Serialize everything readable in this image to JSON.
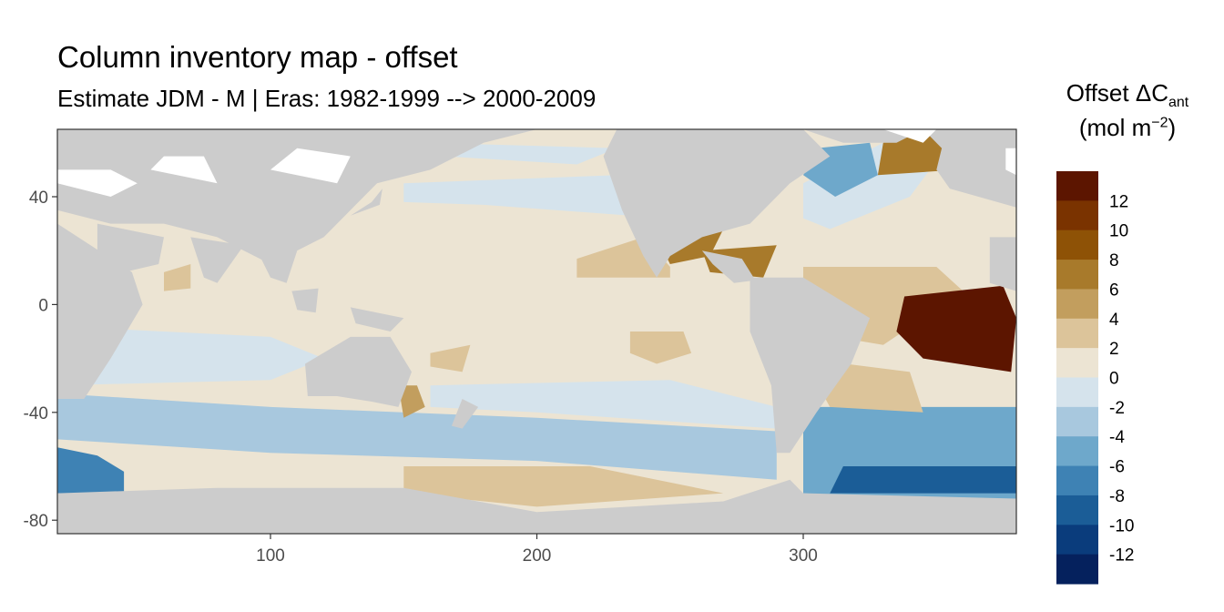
{
  "chart_data": {
    "type": "heatmap",
    "title": "Column inventory map - offset",
    "subtitle": "Estimate JDM - M | Eras: 1982-1999 --> 2000-2009",
    "legend": {
      "title_main": "Offset ΔC",
      "title_sub": "ant",
      "units_prefix": "(mol m",
      "units_sup": "−2",
      "units_suffix": ")",
      "placement": "right",
      "breaks": [
        14,
        12,
        10,
        8,
        6,
        4,
        2,
        0,
        -2,
        -4,
        -6,
        -8,
        -10,
        -12,
        -14
      ],
      "labels": [
        "12",
        "10",
        "8",
        "6",
        "4",
        "2",
        "0",
        "-2",
        "-4",
        "-6",
        "-8",
        "-10",
        "-12"
      ],
      "colors": [
        "#5c1500",
        "#7a3300",
        "#8e5206",
        "#a87a2b",
        "#c29e5e",
        "#dcc49a",
        "#ece4d3",
        "#d5e3ec",
        "#a8c8de",
        "#6ea8cb",
        "#3e82b4",
        "#1b5d97",
        "#0a3c7c",
        "#05215d"
      ]
    },
    "xlim": [
      20,
      380
    ],
    "ylim": [
      -85,
      65
    ],
    "x_ticks": [
      100,
      200,
      300
    ],
    "y_ticks": [
      40,
      0,
      -40,
      -80
    ],
    "grid": false,
    "colors": {
      "land": "#cccccc",
      "no_data": "#ffffff",
      "axis": "#333333"
    },
    "regions": [
      {
        "name": "pacific-background",
        "value": 0.8,
        "points": [
          [
            20,
            65
          ],
          [
            380,
            65
          ],
          [
            380,
            -85
          ],
          [
            20,
            -85
          ]
        ]
      },
      {
        "name": "north-pacific-negative",
        "value": -0.8,
        "points": [
          [
            150,
            45
          ],
          [
            230,
            48
          ],
          [
            255,
            40
          ],
          [
            235,
            33
          ],
          [
            180,
            37
          ],
          [
            150,
            38
          ]
        ]
      },
      {
        "name": "subpolar-pacific-negative",
        "value": -0.8,
        "points": [
          [
            160,
            60
          ],
          [
            230,
            58
          ],
          [
            215,
            52
          ],
          [
            165,
            55
          ]
        ]
      },
      {
        "name": "southern-ocean-band",
        "value": -2.8,
        "points": [
          [
            20,
            -33
          ],
          [
            100,
            -38
          ],
          [
            200,
            -42
          ],
          [
            290,
            -47
          ],
          [
            290,
            -65
          ],
          [
            200,
            -58
          ],
          [
            100,
            -55
          ],
          [
            20,
            -50
          ]
        ]
      },
      {
        "name": "south-indian-negative",
        "value": -0.8,
        "points": [
          [
            20,
            -8
          ],
          [
            100,
            -12
          ],
          [
            120,
            -20
          ],
          [
            100,
            -28
          ],
          [
            20,
            -30
          ]
        ]
      },
      {
        "name": "south-pacific-negative",
        "value": -0.8,
        "points": [
          [
            160,
            -30
          ],
          [
            250,
            -28
          ],
          [
            290,
            -38
          ],
          [
            290,
            -46
          ],
          [
            200,
            -40
          ],
          [
            160,
            -38
          ]
        ]
      },
      {
        "name": "ross-sea-positive",
        "value": 2.5,
        "points": [
          [
            150,
            -60
          ],
          [
            220,
            -60
          ],
          [
            270,
            -70
          ],
          [
            200,
            -75
          ],
          [
            150,
            -70
          ]
        ]
      },
      {
        "name": "indian-weddell-strong-negative",
        "value": -6.5,
        "points": [
          [
            20,
            -53
          ],
          [
            35,
            -56
          ],
          [
            45,
            -62
          ],
          [
            45,
            -70
          ],
          [
            20,
            -70
          ]
        ]
      },
      {
        "name": "atlantic-sector-negative",
        "value": -4.5,
        "points": [
          [
            300,
            -38
          ],
          [
            380,
            -38
          ],
          [
            380,
            -75
          ],
          [
            300,
            -70
          ]
        ]
      },
      {
        "name": "weddell-strong-negative",
        "value": -9,
        "points": [
          [
            315,
            -60
          ],
          [
            380,
            -60
          ],
          [
            380,
            -70
          ],
          [
            310,
            -70
          ]
        ]
      },
      {
        "name": "east-pacific-positive",
        "value": 3,
        "points": [
          [
            215,
            10
          ],
          [
            250,
            10
          ],
          [
            250,
            14
          ],
          [
            240,
            25
          ],
          [
            215,
            17
          ]
        ]
      },
      {
        "name": "east-pacific-south-positive",
        "value": 2.5,
        "points": [
          [
            235,
            -10
          ],
          [
            255,
            -10
          ],
          [
            258,
            -18
          ],
          [
            245,
            -22
          ],
          [
            235,
            -18
          ]
        ]
      },
      {
        "name": "caribbean-positive",
        "value": 6.5,
        "points": [
          [
            245,
            25
          ],
          [
            270,
            28
          ],
          [
            265,
            18
          ],
          [
            250,
            15
          ]
        ]
      },
      {
        "name": "gulf-positive",
        "value": 6.5,
        "points": [
          [
            262,
            20
          ],
          [
            290,
            22
          ],
          [
            285,
            10
          ],
          [
            265,
            12
          ]
        ]
      },
      {
        "name": "north-atlantic-negative",
        "value": -1.5,
        "points": [
          [
            310,
            28
          ],
          [
            340,
            40
          ],
          [
            355,
            60
          ],
          [
            330,
            60
          ],
          [
            300,
            45
          ],
          [
            300,
            32
          ]
        ]
      },
      {
        "name": "labrador-strong-negative",
        "value": -4.5,
        "points": [
          [
            312,
            40
          ],
          [
            328,
            48
          ],
          [
            325,
            60
          ],
          [
            305,
            58
          ],
          [
            300,
            48
          ]
        ]
      },
      {
        "name": "nordic-positive",
        "value": 6.5,
        "points": [
          [
            328,
            48
          ],
          [
            358,
            50
          ],
          [
            370,
            65
          ],
          [
            345,
            65
          ],
          [
            330,
            60
          ]
        ]
      },
      {
        "name": "atlantic-equator-positive",
        "value": 3,
        "points": [
          [
            300,
            14
          ],
          [
            350,
            14
          ],
          [
            360,
            5
          ],
          [
            330,
            -15
          ],
          [
            300,
            -10
          ]
        ]
      },
      {
        "name": "south-atlantic-positive",
        "value": 4,
        "points": [
          [
            300,
            -20
          ],
          [
            340,
            -25
          ],
          [
            345,
            -40
          ],
          [
            310,
            -38
          ]
        ]
      },
      {
        "name": "south-atlantic-hotspot",
        "value": 13.5,
        "points": [
          [
            338,
            3
          ],
          [
            375,
            7
          ],
          [
            380,
            -5
          ],
          [
            378,
            -25
          ],
          [
            345,
            -20
          ],
          [
            335,
            -10
          ]
        ]
      },
      {
        "name": "tasman-positive",
        "value": 5,
        "points": [
          [
            148,
            -30
          ],
          [
            155,
            -30
          ],
          [
            158,
            -38
          ],
          [
            150,
            -42
          ]
        ]
      },
      {
        "name": "indonesia-positive",
        "value": 2.5,
        "points": [
          [
            160,
            -18
          ],
          [
            175,
            -15
          ],
          [
            172,
            -25
          ],
          [
            160,
            -23
          ]
        ]
      },
      {
        "name": "arabian-positive",
        "value": 2.5,
        "points": [
          [
            60,
            12
          ],
          [
            70,
            15
          ],
          [
            70,
            6
          ],
          [
            60,
            5
          ]
        ]
      },
      {
        "name": "north-america-land",
        "value": null,
        "points": [
          [
            230,
            65
          ],
          [
            300,
            65
          ],
          [
            310,
            55
          ],
          [
            295,
            45
          ],
          [
            280,
            30
          ],
          [
            262,
            25
          ],
          [
            250,
            18
          ],
          [
            245,
            10
          ],
          [
            240,
            18
          ],
          [
            232,
            35
          ],
          [
            225,
            55
          ]
        ]
      },
      {
        "name": "central-america-land",
        "value": null,
        "points": [
          [
            262,
            20
          ],
          [
            277,
            17
          ],
          [
            282,
            9
          ],
          [
            274,
            8
          ],
          [
            266,
            15
          ]
        ]
      },
      {
        "name": "south-america-land",
        "value": null,
        "points": [
          [
            280,
            10
          ],
          [
            300,
            10
          ],
          [
            325,
            -5
          ],
          [
            318,
            -22
          ],
          [
            305,
            -40
          ],
          [
            295,
            -55
          ],
          [
            290,
            -55
          ],
          [
            288,
            -30
          ],
          [
            280,
            -10
          ]
        ]
      },
      {
        "name": "greenland-land",
        "value": null,
        "points": [
          [
            300,
            65
          ],
          [
            345,
            65
          ],
          [
            335,
            60
          ],
          [
            315,
            60
          ]
        ]
      },
      {
        "name": "eurasia-land",
        "value": null,
        "points": [
          [
            20,
            65
          ],
          [
            200,
            65
          ],
          [
            180,
            60
          ],
          [
            160,
            50
          ],
          [
            140,
            45
          ],
          [
            130,
            35
          ],
          [
            120,
            25
          ],
          [
            100,
            15
          ],
          [
            80,
            25
          ],
          [
            60,
            30
          ],
          [
            40,
            30
          ],
          [
            20,
            35
          ]
        ]
      },
      {
        "name": "arabia-land",
        "value": null,
        "points": [
          [
            35,
            30
          ],
          [
            60,
            25
          ],
          [
            58,
            15
          ],
          [
            45,
            12
          ],
          [
            35,
            20
          ]
        ]
      },
      {
        "name": "africa-land",
        "value": null,
        "points": [
          [
            20,
            30
          ],
          [
            48,
            12
          ],
          [
            52,
            0
          ],
          [
            40,
            -20
          ],
          [
            30,
            -35
          ],
          [
            20,
            -35
          ]
        ]
      },
      {
        "name": "india-land",
        "value": null,
        "points": [
          [
            70,
            25
          ],
          [
            90,
            22
          ],
          [
            80,
            8
          ],
          [
            75,
            10
          ]
        ]
      },
      {
        "name": "southeast-asia-land",
        "value": null,
        "points": [
          [
            95,
            20
          ],
          [
            110,
            20
          ],
          [
            106,
            8
          ],
          [
            100,
            10
          ]
        ]
      },
      {
        "name": "borneo-land",
        "value": null,
        "points": [
          [
            108,
            5
          ],
          [
            118,
            6
          ],
          [
            117,
            -3
          ],
          [
            110,
            -2
          ]
        ]
      },
      {
        "name": "new-guinea-land",
        "value": null,
        "points": [
          [
            130,
            -1
          ],
          [
            150,
            -5
          ],
          [
            145,
            -10
          ],
          [
            132,
            -7
          ]
        ]
      },
      {
        "name": "australia-land",
        "value": null,
        "points": [
          [
            113,
            -22
          ],
          [
            130,
            -12
          ],
          [
            145,
            -12
          ],
          [
            153,
            -25
          ],
          [
            148,
            -38
          ],
          [
            138,
            -36
          ],
          [
            125,
            -34
          ],
          [
            114,
            -34
          ]
        ]
      },
      {
        "name": "new-zealand-land",
        "value": null,
        "points": [
          [
            172,
            -35
          ],
          [
            178,
            -38
          ],
          [
            172,
            -46
          ],
          [
            168,
            -45
          ]
        ]
      },
      {
        "name": "japan-land",
        "value": null,
        "points": [
          [
            130,
            33
          ],
          [
            141,
            37
          ],
          [
            142,
            43
          ],
          [
            138,
            38
          ]
        ]
      },
      {
        "name": "antarctica-land",
        "value": null,
        "points": [
          [
            20,
            -70
          ],
          [
            80,
            -68
          ],
          [
            150,
            -68
          ],
          [
            200,
            -77
          ],
          [
            270,
            -73
          ],
          [
            295,
            -65
          ],
          [
            300,
            -70
          ],
          [
            380,
            -72
          ],
          [
            380,
            -85
          ],
          [
            20,
            -85
          ]
        ]
      },
      {
        "name": "europe-land",
        "value": null,
        "points": [
          [
            345,
            65
          ],
          [
            380,
            65
          ],
          [
            380,
            36
          ],
          [
            355,
            43
          ],
          [
            350,
            50
          ],
          [
            352,
            58
          ]
        ]
      },
      {
        "name": "west-africa-land",
        "value": null,
        "points": [
          [
            370,
            25
          ],
          [
            380,
            25
          ],
          [
            380,
            5
          ],
          [
            370,
            8
          ]
        ]
      }
    ],
    "no_data_patches": [
      {
        "points": [
          [
            20,
            45
          ],
          [
            40,
            40
          ],
          [
            50,
            45
          ],
          [
            40,
            50
          ],
          [
            20,
            50
          ]
        ]
      },
      {
        "points": [
          [
            55,
            50
          ],
          [
            80,
            45
          ],
          [
            75,
            55
          ],
          [
            60,
            55
          ]
        ]
      },
      {
        "points": [
          [
            100,
            50
          ],
          [
            125,
            45
          ],
          [
            130,
            55
          ],
          [
            110,
            58
          ]
        ]
      },
      {
        "points": [
          [
            330,
            65
          ],
          [
            350,
            65
          ],
          [
            345,
            60
          ]
        ]
      },
      {
        "points": [
          [
            376,
            58
          ],
          [
            380,
            58
          ],
          [
            380,
            48
          ],
          [
            376,
            50
          ]
        ]
      }
    ]
  }
}
